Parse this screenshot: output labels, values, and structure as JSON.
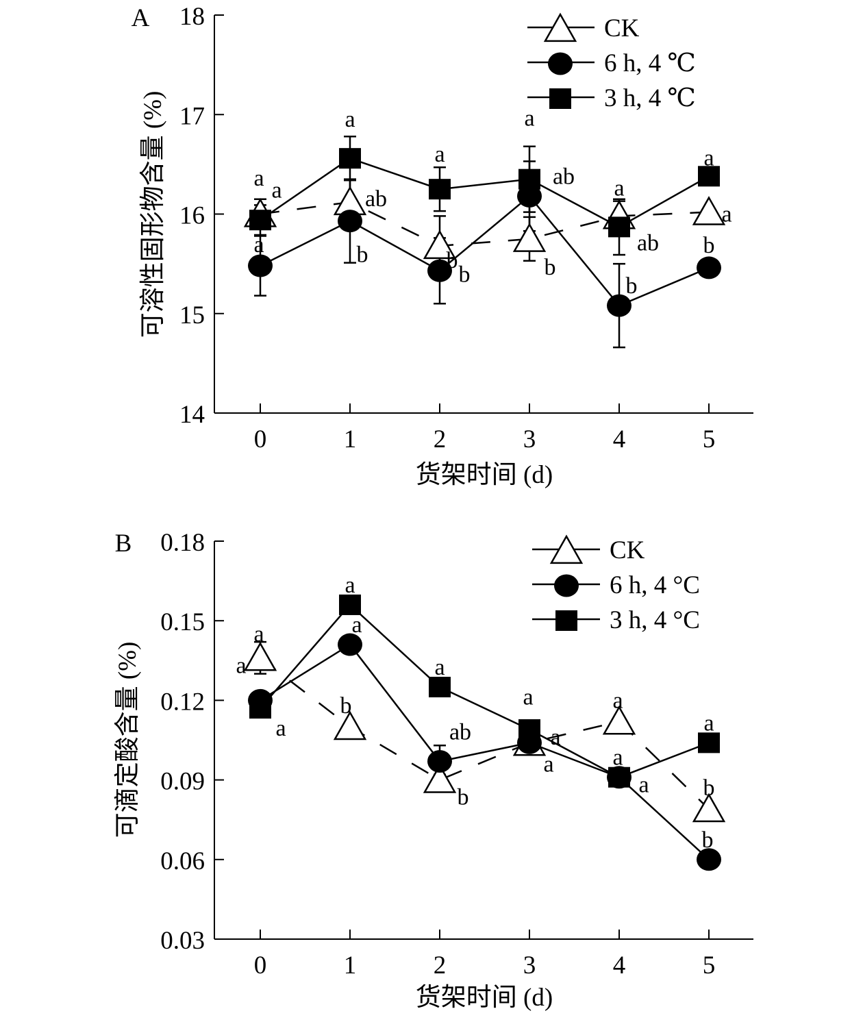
{
  "chart_data": [
    {
      "type": "line",
      "panel_label": "A",
      "xlabel": "货架时间 (d)",
      "ylabel": "可溶性固形物含量 (%)",
      "x": [
        0,
        1,
        2,
        3,
        4,
        5
      ],
      "xlim": [
        -0.5,
        5.5
      ],
      "ylim": [
        14,
        18
      ],
      "yticks": [
        "14",
        "15",
        "16",
        "17",
        "18"
      ],
      "ytick_values": [
        14,
        15,
        16,
        17,
        18
      ],
      "legend_position": "top-right",
      "series": [
        {
          "name": "CK",
          "marker": "triangle-open",
          "line": "dashed",
          "values": [
            16.0,
            16.12,
            15.68,
            15.75,
            15.98,
            16.02
          ],
          "errors": [
            0.15,
            0.22,
            0.3,
            0.22,
            0.15,
            0.0
          ],
          "letters": [
            "a",
            "ab",
            "b",
            "b",
            "a",
            "a"
          ]
        },
        {
          "name": "6 h, 4 ℃",
          "marker": "circle-filled",
          "line": "solid",
          "values": [
            15.48,
            15.93,
            15.43,
            16.18,
            15.08,
            15.46
          ],
          "errors": [
            0.3,
            0.42,
            0.33,
            0.35,
            0.42,
            0.0
          ],
          "letters": [
            "a",
            "b",
            "b",
            "ab",
            "b",
            "b"
          ]
        },
        {
          "name": "3 h, 4 ℃",
          "marker": "square-filled",
          "line": "solid",
          "values": [
            15.94,
            16.56,
            16.25,
            16.35,
            15.87,
            16.38
          ],
          "errors": [
            0.15,
            0.22,
            0.22,
            0.33,
            0.28,
            0.0
          ],
          "letters": [
            "a",
            "a",
            "a",
            "a",
            "ab",
            "a"
          ]
        }
      ]
    },
    {
      "type": "line",
      "panel_label": "B",
      "xlabel": "货架时间 (d)",
      "ylabel": "可滴定酸含量 (%)",
      "x": [
        0,
        1,
        2,
        3,
        4,
        5
      ],
      "xlim": [
        -0.5,
        5.5
      ],
      "ylim": [
        0.03,
        0.18
      ],
      "yticks": [
        "0.03",
        "0.06",
        "0.09",
        "0.12",
        "0.15",
        "0.18"
      ],
      "ytick_values": [
        0.03,
        0.06,
        0.09,
        0.12,
        0.15,
        0.18
      ],
      "legend_position": "top-right",
      "series": [
        {
          "name": "CK",
          "marker": "triangle-open",
          "line": "dashed",
          "values": [
            0.136,
            0.11,
            0.09,
            0.104,
            0.112,
            0.079
          ],
          "errors": [
            0.006,
            0.0,
            0.002,
            0.002,
            0.0,
            0.0
          ],
          "letters": [
            "a",
            "b",
            "b",
            "a",
            "a",
            "b"
          ]
        },
        {
          "name": "6 h, 4 °C",
          "marker": "circle-filled",
          "line": "solid",
          "values": [
            0.12,
            0.141,
            0.097,
            0.104,
            0.091,
            0.06
          ],
          "errors": [
            0.003,
            0.003,
            0.006,
            0.003,
            0.0,
            0.0
          ],
          "letters": [
            "a",
            "a",
            "ab",
            "a",
            "a",
            "b"
          ]
        },
        {
          "name": "3 h, 4 °C",
          "marker": "square-filled",
          "line": "solid",
          "values": [
            0.117,
            0.156,
            0.125,
            0.109,
            0.091,
            0.104
          ],
          "errors": [
            0.003,
            0.0,
            0.0,
            0.002,
            0.0,
            0.0
          ],
          "letters": [
            "a",
            "a",
            "a",
            "a",
            "a",
            "a"
          ]
        }
      ]
    }
  ]
}
